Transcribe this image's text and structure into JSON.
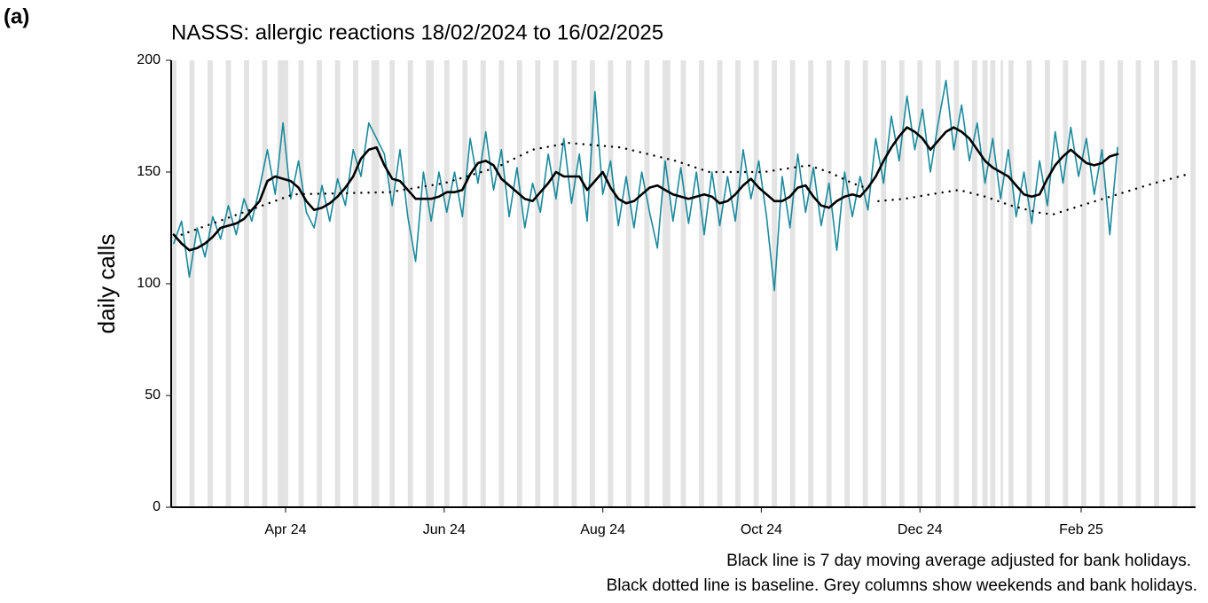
{
  "panel_label": "(a)",
  "chart_data": {
    "type": "line",
    "title": "NASSS: allergic reactions 18/02/2024 to 16/02/2025",
    "y_label": "daily calls",
    "notes": [
      "Black line is 7 day moving average adjusted for bank holidays.",
      "Black dotted line is baseline. Grey columns show weekends and bank holidays."
    ],
    "xlim": [
      "2024-02-17",
      "2025-03-17"
    ],
    "xticks": [
      {
        "value": "2024-04-01",
        "label": "Apr 24"
      },
      {
        "value": "2024-06-01",
        "label": "Jun 24"
      },
      {
        "value": "2024-08-01",
        "label": "Aug 24"
      },
      {
        "value": "2024-10-01",
        "label": "Oct 24"
      },
      {
        "value": "2024-12-01",
        "label": "Dec 24"
      },
      {
        "value": "2025-02-01",
        "label": "Feb 25"
      }
    ],
    "ylim": [
      0,
      200
    ],
    "yticks": [
      0,
      50,
      100,
      150,
      200
    ],
    "shaded_color": "#e3e3e3",
    "shaded": [
      [
        "2024-02-17",
        "2024-02-18"
      ],
      [
        "2024-02-24",
        "2024-02-25"
      ],
      [
        "2024-03-02",
        "2024-03-03"
      ],
      [
        "2024-03-09",
        "2024-03-10"
      ],
      [
        "2024-03-16",
        "2024-03-17"
      ],
      [
        "2024-03-23",
        "2024-03-24"
      ],
      [
        "2024-03-29",
        "2024-04-01"
      ],
      [
        "2024-04-06",
        "2024-04-07"
      ],
      [
        "2024-04-13",
        "2024-04-14"
      ],
      [
        "2024-04-20",
        "2024-04-21"
      ],
      [
        "2024-04-27",
        "2024-04-28"
      ],
      [
        "2024-05-04",
        "2024-05-06"
      ],
      [
        "2024-05-11",
        "2024-05-12"
      ],
      [
        "2024-05-18",
        "2024-05-19"
      ],
      [
        "2024-05-25",
        "2024-05-27"
      ],
      [
        "2024-06-01",
        "2024-06-02"
      ],
      [
        "2024-06-08",
        "2024-06-09"
      ],
      [
        "2024-06-15",
        "2024-06-16"
      ],
      [
        "2024-06-22",
        "2024-06-23"
      ],
      [
        "2024-06-29",
        "2024-06-30"
      ],
      [
        "2024-07-06",
        "2024-07-07"
      ],
      [
        "2024-07-13",
        "2024-07-14"
      ],
      [
        "2024-07-20",
        "2024-07-21"
      ],
      [
        "2024-07-27",
        "2024-07-28"
      ],
      [
        "2024-08-03",
        "2024-08-04"
      ],
      [
        "2024-08-10",
        "2024-08-11"
      ],
      [
        "2024-08-17",
        "2024-08-18"
      ],
      [
        "2024-08-24",
        "2024-08-26"
      ],
      [
        "2024-08-31",
        "2024-09-01"
      ],
      [
        "2024-09-07",
        "2024-09-08"
      ],
      [
        "2024-09-14",
        "2024-09-15"
      ],
      [
        "2024-09-21",
        "2024-09-22"
      ],
      [
        "2024-09-28",
        "2024-09-29"
      ],
      [
        "2024-10-05",
        "2024-10-06"
      ],
      [
        "2024-10-12",
        "2024-10-13"
      ],
      [
        "2024-10-19",
        "2024-10-20"
      ],
      [
        "2024-10-26",
        "2024-10-27"
      ],
      [
        "2024-11-02",
        "2024-11-03"
      ],
      [
        "2024-11-09",
        "2024-11-10"
      ],
      [
        "2024-11-16",
        "2024-11-17"
      ],
      [
        "2024-11-23",
        "2024-11-24"
      ],
      [
        "2024-11-30",
        "2024-12-01"
      ],
      [
        "2024-12-07",
        "2024-12-08"
      ],
      [
        "2024-12-14",
        "2024-12-15"
      ],
      [
        "2024-12-21",
        "2024-12-22"
      ],
      [
        "2024-12-25",
        "2024-12-26"
      ],
      [
        "2024-12-28",
        "2024-12-29"
      ],
      [
        "2025-01-01",
        "2025-01-01"
      ],
      [
        "2025-01-04",
        "2025-01-05"
      ],
      [
        "2025-01-11",
        "2025-01-12"
      ],
      [
        "2025-01-18",
        "2025-01-19"
      ],
      [
        "2025-01-25",
        "2025-01-26"
      ],
      [
        "2025-02-01",
        "2025-02-02"
      ],
      [
        "2025-02-08",
        "2025-02-09"
      ],
      [
        "2025-02-15",
        "2025-02-16"
      ],
      [
        "2025-02-22",
        "2025-02-23"
      ],
      [
        "2025-03-01",
        "2025-03-02"
      ],
      [
        "2025-03-08",
        "2025-03-09"
      ],
      [
        "2025-03-15",
        "2025-03-16"
      ]
    ],
    "x": [
      "2024-02-18",
      "2024-02-21",
      "2024-02-24",
      "2024-02-27",
      "2024-03-01",
      "2024-03-04",
      "2024-03-07",
      "2024-03-10",
      "2024-03-13",
      "2024-03-16",
      "2024-03-19",
      "2024-03-22",
      "2024-03-25",
      "2024-03-28",
      "2024-03-31",
      "2024-04-03",
      "2024-04-06",
      "2024-04-09",
      "2024-04-12",
      "2024-04-15",
      "2024-04-18",
      "2024-04-21",
      "2024-04-24",
      "2024-04-27",
      "2024-04-30",
      "2024-05-03",
      "2024-05-06",
      "2024-05-09",
      "2024-05-12",
      "2024-05-15",
      "2024-05-18",
      "2024-05-21",
      "2024-05-24",
      "2024-05-27",
      "2024-05-30",
      "2024-06-02",
      "2024-06-05",
      "2024-06-08",
      "2024-06-11",
      "2024-06-14",
      "2024-06-17",
      "2024-06-20",
      "2024-06-23",
      "2024-06-26",
      "2024-06-29",
      "2024-07-02",
      "2024-07-05",
      "2024-07-08",
      "2024-07-11",
      "2024-07-14",
      "2024-07-17",
      "2024-07-20",
      "2024-07-23",
      "2024-07-26",
      "2024-07-29",
      "2024-08-01",
      "2024-08-04",
      "2024-08-07",
      "2024-08-10",
      "2024-08-13",
      "2024-08-16",
      "2024-08-19",
      "2024-08-22",
      "2024-08-25",
      "2024-08-28",
      "2024-08-31",
      "2024-09-03",
      "2024-09-06",
      "2024-09-09",
      "2024-09-12",
      "2024-09-15",
      "2024-09-18",
      "2024-09-21",
      "2024-09-24",
      "2024-09-27",
      "2024-09-30",
      "2024-10-03",
      "2024-10-06",
      "2024-10-09",
      "2024-10-12",
      "2024-10-15",
      "2024-10-18",
      "2024-10-21",
      "2024-10-24",
      "2024-10-27",
      "2024-10-30",
      "2024-11-02",
      "2024-11-05",
      "2024-11-08",
      "2024-11-11",
      "2024-11-14",
      "2024-11-17",
      "2024-11-20",
      "2024-11-23",
      "2024-11-26",
      "2024-11-29",
      "2024-12-02",
      "2024-12-05",
      "2024-12-08",
      "2024-12-11",
      "2024-12-14",
      "2024-12-17",
      "2024-12-20",
      "2024-12-23",
      "2024-12-26",
      "2024-12-29",
      "2025-01-01",
      "2025-01-04",
      "2025-01-07",
      "2025-01-10",
      "2025-01-13",
      "2025-01-16",
      "2025-01-19",
      "2025-01-22",
      "2025-01-25",
      "2025-01-28",
      "2025-01-31",
      "2025-02-03",
      "2025-02-06",
      "2025-02-09",
      "2025-02-12",
      "2025-02-15"
    ],
    "series": [
      {
        "color": "#1a8a9c",
        "width": 1.6,
        "values": [
          118,
          128,
          103,
          125,
          112,
          130,
          120,
          135,
          122,
          138,
          128,
          143,
          160,
          140,
          172,
          138,
          155,
          132,
          125,
          144,
          128,
          147,
          135,
          160,
          148,
          172,
          165,
          158,
          135,
          160,
          130,
          110,
          150,
          128,
          150,
          132,
          150,
          130,
          165,
          145,
          168,
          142,
          160,
          130,
          152,
          125,
          145,
          132,
          158,
          138,
          165,
          136,
          158,
          128,
          186,
          140,
          155,
          126,
          148,
          125,
          150,
          132,
          116,
          155,
          128,
          152,
          127,
          150,
          122,
          150,
          126,
          148,
          128,
          160,
          138,
          155,
          130,
          97,
          148,
          125,
          158,
          132,
          152,
          126,
          145,
          115,
          150,
          130,
          148,
          133,
          165,
          145,
          175,
          155,
          184,
          160,
          178,
          150,
          172,
          191,
          160,
          180,
          155,
          172,
          145,
          165,
          138,
          160,
          130,
          150,
          127,
          155,
          135,
          168,
          145,
          170,
          148,
          165,
          140,
          160,
          122,
          161
        ]
      },
      {
        "color": "#000000",
        "width": 2.6,
        "values": [
          122,
          118,
          115,
          116,
          118,
          121,
          125,
          126,
          127,
          129,
          133,
          137,
          146,
          148,
          147,
          146,
          143,
          137,
          133,
          134,
          136,
          139,
          143,
          148,
          156,
          160,
          161,
          153,
          147,
          146,
          142,
          138,
          138,
          138,
          139,
          141,
          141,
          142,
          149,
          154,
          155,
          153,
          147,
          144,
          141,
          138,
          137,
          141,
          145,
          150,
          148,
          148,
          148,
          142,
          146,
          150,
          143,
          138,
          136,
          137,
          140,
          143,
          144,
          142,
          140,
          139,
          138,
          139,
          140,
          139,
          136,
          137,
          140,
          144,
          147,
          143,
          140,
          137,
          137,
          139,
          143,
          144,
          139,
          135,
          134,
          137,
          139,
          140,
          139,
          143,
          148,
          155,
          161,
          166,
          170,
          168,
          165,
          160,
          164,
          168,
          170,
          168,
          165,
          160,
          155,
          152,
          150,
          148,
          144,
          140,
          139,
          140,
          147,
          153,
          157,
          160,
          157,
          154,
          153,
          154,
          157,
          158
        ]
      },
      {
        "color": "#000000",
        "width": 2.4,
        "style": "dotted",
        "x": [
          "2024-02-21",
          "2024-04-04",
          "2024-05-11",
          "2024-06-01",
          "2024-06-21",
          "2024-07-05",
          "2024-07-19",
          "2024-08-08",
          "2024-08-29",
          "2024-09-11",
          "2024-10-02",
          "2024-10-19",
          "2024-10-27",
          "2024-11-05",
          "2024-11-10",
          "2024-11-12",
          "2024-11-15",
          "2024-11-25",
          "2024-12-05",
          "2024-12-16",
          "2024-12-26",
          "2025-01-05",
          "2025-01-15",
          "2025-01-21",
          "2025-02-01",
          "2025-02-15",
          "2025-03-01",
          "2025-03-14"
        ],
        "values": [
          122,
          140,
          141,
          145,
          152,
          160,
          163,
          161,
          155,
          150,
          150,
          153,
          150,
          145,
          143,
          null,
          137,
          138,
          140,
          142,
          139,
          135,
          132,
          131,
          135,
          140,
          145,
          149
        ]
      }
    ]
  }
}
